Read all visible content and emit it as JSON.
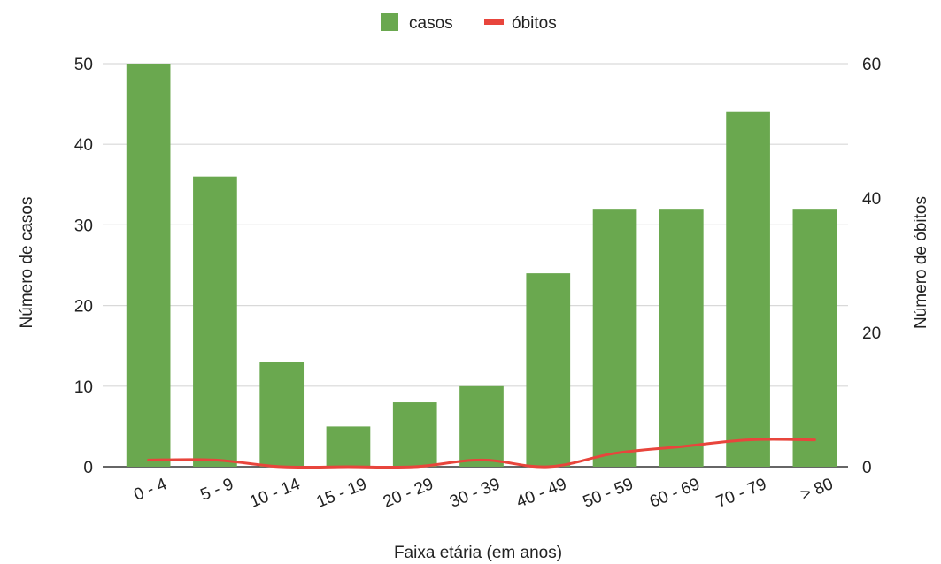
{
  "chart_data": {
    "type": "bar",
    "categories": [
      "0 - 4",
      "5 - 9",
      "10 - 14",
      "15 - 19",
      "20 - 29",
      "30 - 39",
      "40 - 49",
      "50 - 59",
      "60 - 69",
      "70 - 79",
      "> 80"
    ],
    "series": [
      {
        "name": "casos",
        "type": "bar",
        "axis": "left",
        "color": "#6aa84f",
        "values": [
          50,
          36,
          13,
          5,
          8,
          10,
          24,
          32,
          32,
          44,
          32
        ]
      },
      {
        "name": "óbitos",
        "type": "line",
        "axis": "right",
        "color": "#e8453c",
        "values": [
          1,
          1,
          0,
          0,
          0,
          1,
          0,
          2,
          3,
          4,
          4
        ]
      }
    ],
    "xlabel": "Faixa etária (em anos)",
    "ylabel": "Número de casos",
    "y2label": "Número de óbitos",
    "ylim": [
      0,
      50
    ],
    "y2lim": [
      0,
      60
    ],
    "yticks": [
      0,
      10,
      20,
      30,
      40,
      50
    ],
    "y2ticks": [
      0,
      20,
      40,
      60
    ],
    "grid": true,
    "legend": "top"
  }
}
